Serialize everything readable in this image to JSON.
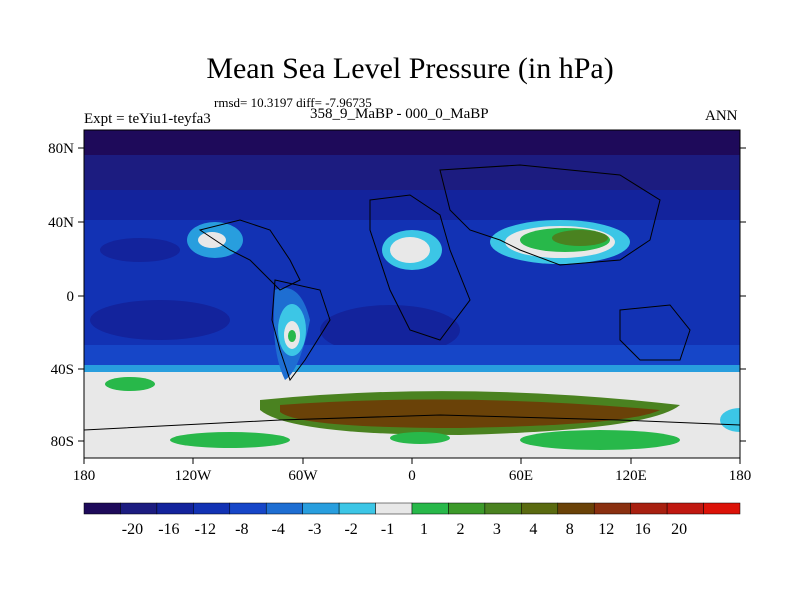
{
  "title": "Mean Sea Level Pressure (in hPa)",
  "stats": "rmsd= 10.3197 diff= -7.96735",
  "subtitle": "358_9_MaBP - 000_0_MaBP",
  "left_label": "Expt = teYiu1-teyfa3",
  "right_label": "ANN",
  "lat_labels": [
    "80N",
    "40N",
    "0",
    "40S",
    "80S"
  ],
  "lon_labels": [
    "180",
    "120W",
    "60W",
    "0",
    "60E",
    "120E",
    "180"
  ],
  "colorbar": {
    "colors": [
      "#1e0a5a",
      "#1c1c80",
      "#13239c",
      "#1232b4",
      "#1646c8",
      "#1e6ed2",
      "#289ede",
      "#3cc6e6",
      "#e8e8e8",
      "#28b84a",
      "#3c9a2a",
      "#4a8220",
      "#5a6a10",
      "#6a4208",
      "#8a3010",
      "#a82010",
      "#c01810",
      "#dc1208"
    ],
    "labels": [
      "-20",
      "-16",
      "-12",
      "-8",
      "-4",
      "-3",
      "-2",
      "-1",
      "1",
      "2",
      "3",
      "4",
      "8",
      "12",
      "16",
      "20"
    ]
  }
}
